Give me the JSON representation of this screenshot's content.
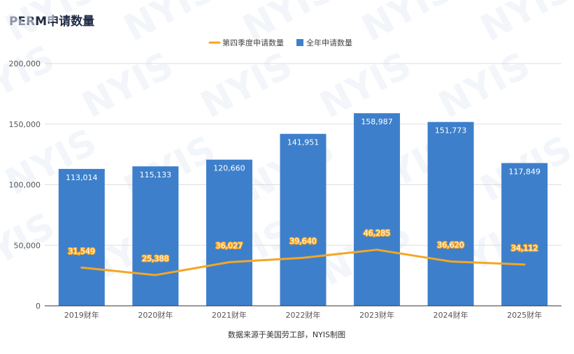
{
  "title": "PERM申请数量",
  "watermark_text": "NYIS",
  "source_note": "数据来源于美国劳工部，NYIS制图",
  "colors": {
    "bar": "#3d7fcb",
    "line": "#f5a623",
    "grid": "#dddddd",
    "axis": "#333333"
  },
  "chart_data": {
    "type": "bar",
    "categories": [
      "2019财年",
      "2020财年",
      "2021财年",
      "2022财年",
      "2023财年",
      "2024财年",
      "2025财年"
    ],
    "series": [
      {
        "name": "全年申请数量",
        "type": "bar",
        "values": [
          113014,
          115133,
          120660,
          141951,
          158987,
          151773,
          117849
        ]
      },
      {
        "name": "第四季度申请数量",
        "type": "line",
        "values": [
          31549,
          25388,
          36027,
          39640,
          46285,
          36620,
          34112
        ]
      }
    ],
    "ylim": [
      0,
      200000
    ],
    "yticks": [
      0,
      50000,
      100000,
      150000,
      200000
    ],
    "ytick_labels": [
      "0",
      "50,000",
      "100,000",
      "150,000",
      "200,000"
    ],
    "bar_value_labels": [
      "113,014",
      "115,133",
      "120,660",
      "141,951",
      "158,987",
      "151,773",
      "117,849"
    ],
    "line_value_labels": [
      "31,549",
      "25,388",
      "36,027",
      "39,640",
      "46,285",
      "36,620",
      "34,112"
    ],
    "legend": [
      {
        "label": "第四季度申请数量",
        "marker": "line"
      },
      {
        "label": "全年申请数量",
        "marker": "square"
      }
    ],
    "legend_position": "top-center",
    "grid": true
  }
}
